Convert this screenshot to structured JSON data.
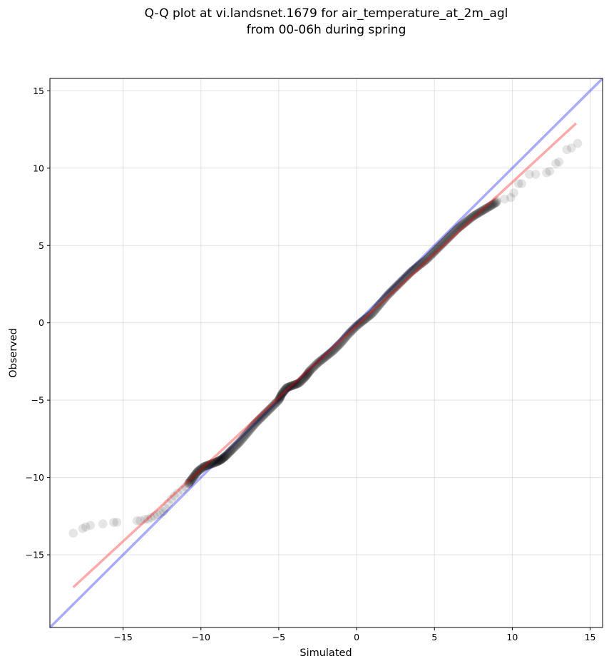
{
  "chart_data": {
    "type": "scatter",
    "title_line1": "Q-Q plot at vi.landsnet.1679 for air_temperature_at_2m_agl",
    "title_line2": "from 00-06h during spring",
    "xlabel": "Simulated",
    "ylabel": "Observed",
    "xlim": [
      -19.7,
      15.8
    ],
    "ylim": [
      -19.7,
      15.8
    ],
    "xticks": [
      -15,
      -10,
      -5,
      0,
      5,
      10,
      15
    ],
    "yticks": [
      -15,
      -10,
      -5,
      0,
      5,
      10,
      15
    ],
    "xtick_labels": [
      "−15",
      "−10",
      "−5",
      "0",
      "5",
      "10",
      "15"
    ],
    "ytick_labels": [
      "−15",
      "−10",
      "−5",
      "0",
      "5",
      "10",
      "15"
    ],
    "grid": true,
    "colors": {
      "points": "#000000",
      "identity_line": "#0000ff",
      "fit_line": "#ff0000"
    },
    "identity_line": {
      "x": [
        -19.7,
        15.8
      ],
      "y": [
        -19.7,
        15.8
      ]
    },
    "fit_line": {
      "x": [
        -18.2,
        14.1
      ],
      "y": [
        -17.1,
        12.9
      ]
    },
    "tail_points": [
      [
        -18.2,
        -13.6
      ],
      [
        -17.6,
        -13.3
      ],
      [
        -17.4,
        -13.2
      ],
      [
        -17.1,
        -13.1
      ],
      [
        -16.3,
        -13.0
      ],
      [
        -15.6,
        -12.9
      ],
      [
        -15.4,
        -12.9
      ],
      [
        -14.1,
        -12.8
      ],
      [
        -13.9,
        -12.8
      ],
      [
        -13.6,
        -12.7
      ],
      [
        -13.4,
        -12.7
      ],
      [
        -13.2,
        -12.6
      ],
      [
        -13.0,
        -12.5
      ],
      [
        -12.8,
        -12.4
      ],
      [
        -12.6,
        -12.3
      ],
      [
        -12.4,
        -12.2
      ],
      [
        -12.3,
        -12.0
      ],
      [
        -12.1,
        -11.7
      ],
      [
        -11.9,
        -11.4
      ],
      [
        -11.7,
        -11.2
      ],
      [
        -11.5,
        -11.0
      ],
      [
        -11.2,
        -10.8
      ],
      [
        -11.0,
        -10.6
      ],
      [
        -10.8,
        -10.4
      ],
      [
        9.0,
        7.9
      ],
      [
        9.5,
        8.0
      ],
      [
        9.9,
        8.1
      ],
      [
        10.1,
        8.4
      ],
      [
        10.4,
        9.0
      ],
      [
        10.6,
        9.0
      ],
      [
        11.1,
        9.6
      ],
      [
        11.5,
        9.6
      ],
      [
        12.2,
        9.7
      ],
      [
        12.4,
        9.8
      ],
      [
        12.8,
        10.3
      ],
      [
        13.0,
        10.4
      ],
      [
        13.5,
        11.2
      ],
      [
        13.8,
        11.3
      ],
      [
        14.2,
        11.6
      ]
    ],
    "body_curve": [
      [
        -10.8,
        -10.4
      ],
      [
        -10.5,
        -10.0
      ],
      [
        -10.2,
        -9.6
      ],
      [
        -9.8,
        -9.3
      ],
      [
        -9.4,
        -9.15
      ],
      [
        -9.0,
        -9.0
      ],
      [
        -8.7,
        -8.85
      ],
      [
        -8.4,
        -8.6
      ],
      [
        -8.0,
        -8.2
      ],
      [
        -7.5,
        -7.7
      ],
      [
        -7.0,
        -7.1
      ],
      [
        -6.5,
        -6.5
      ],
      [
        -6.0,
        -6.0
      ],
      [
        -5.5,
        -5.5
      ],
      [
        -5.0,
        -5.0
      ],
      [
        -4.8,
        -4.6
      ],
      [
        -4.5,
        -4.2
      ],
      [
        -4.1,
        -4.05
      ],
      [
        -3.7,
        -3.9
      ],
      [
        -3.3,
        -3.5
      ],
      [
        -3.0,
        -3.1
      ],
      [
        -2.5,
        -2.6
      ],
      [
        -2.0,
        -2.2
      ],
      [
        -1.5,
        -1.8
      ],
      [
        -1.0,
        -1.3
      ],
      [
        -0.5,
        -0.7
      ],
      [
        0.0,
        -0.2
      ],
      [
        0.5,
        0.2
      ],
      [
        1.0,
        0.6
      ],
      [
        1.5,
        1.2
      ],
      [
        2.0,
        1.8
      ],
      [
        2.5,
        2.3
      ],
      [
        3.0,
        2.8
      ],
      [
        3.5,
        3.3
      ],
      [
        4.0,
        3.7
      ],
      [
        4.5,
        4.1
      ],
      [
        5.0,
        4.6
      ],
      [
        5.5,
        5.1
      ],
      [
        6.0,
        5.6
      ],
      [
        6.5,
        6.1
      ],
      [
        7.0,
        6.5
      ],
      [
        7.5,
        6.9
      ],
      [
        8.0,
        7.2
      ],
      [
        8.5,
        7.5
      ],
      [
        9.0,
        7.8
      ]
    ]
  }
}
